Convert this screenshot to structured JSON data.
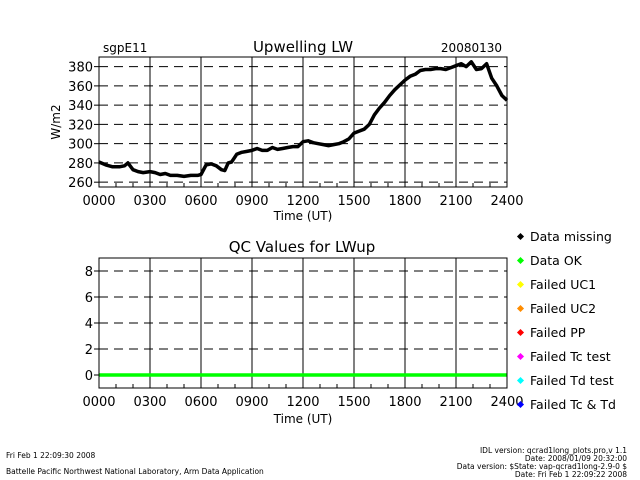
{
  "header": {
    "site": "sgpE11",
    "date": "20080130"
  },
  "footer": {
    "left_line1": "Fri Feb  1 22:09:30 2008",
    "left_line2": "Battelle Pacific Northwest National Laboratory, Arm Data Application",
    "right_line1": "IDL version: qcrad1long_plots.pro,v 1.1",
    "right_line2": "Date: 2008/01/09 20:32:00",
    "right_line3": "Data version: $State: vap-qcrad1long-2.9-0 $",
    "right_line4": "Date: Fri Feb  1 22:09:22 2008"
  },
  "legend": {
    "items": [
      {
        "label": "Data missing",
        "color": "#000000"
      },
      {
        "label": "Data OK",
        "color": "#00ff00"
      },
      {
        "label": "Failed UC1",
        "color": "#ffff00"
      },
      {
        "label": "Failed UC2",
        "color": "#ff8c00"
      },
      {
        "label": "Failed PP",
        "color": "#ff0000"
      },
      {
        "label": "Failed Tc test",
        "color": "#ff00ff"
      },
      {
        "label": "Failed Td test",
        "color": "#00ffff"
      },
      {
        "label": "Failed Tc & Td",
        "color": "#0000ff"
      }
    ]
  },
  "chart_data": [
    {
      "type": "line",
      "title": "Upwelling LW",
      "xlabel": "Time (UT)",
      "ylabel": "W/m2",
      "xlim": [
        0,
        24
      ],
      "ylim": [
        255,
        390
      ],
      "x_ticks": [
        0,
        3,
        6,
        9,
        12,
        15,
        18,
        21,
        24
      ],
      "x_tick_labels": [
        "0000",
        "0300",
        "0600",
        "0900",
        "1200",
        "1500",
        "1800",
        "2100",
        "2400"
      ],
      "y_ticks": [
        260,
        280,
        300,
        320,
        340,
        360,
        380
      ],
      "y_tick_labels": [
        "260",
        "280",
        "300",
        "320",
        "340",
        "360",
        "380"
      ],
      "grid": true,
      "line_color": "#000000",
      "series": [
        {
          "x": [
            0.0,
            0.4,
            0.8,
            1.2,
            1.5,
            1.7,
            2.0,
            2.3,
            2.6,
            3.0,
            3.3,
            3.6,
            3.9,
            4.2,
            4.6,
            5.0,
            5.4,
            5.8,
            6.0,
            6.3,
            6.6,
            6.9,
            7.2,
            7.4,
            7.6,
            7.8,
            8.1,
            8.4,
            8.7,
            9.0,
            9.3,
            9.6,
            9.9,
            10.2,
            10.5,
            10.8,
            11.1,
            11.4,
            11.7,
            12.0,
            12.3,
            12.6,
            12.9,
            13.2,
            13.5,
            13.8,
            14.1,
            14.4,
            14.7,
            15.0,
            15.3,
            15.6,
            15.9,
            16.2,
            16.5,
            16.8,
            17.1,
            17.4,
            17.7,
            18.0,
            18.3,
            18.6,
            18.9,
            19.2,
            19.5,
            19.8,
            20.1,
            20.4,
            20.7,
            21.0,
            21.3,
            21.6,
            21.9,
            22.2,
            22.5,
            22.8,
            23.1,
            23.4,
            23.7,
            24.0
          ],
          "y": [
            281,
            278,
            276,
            276,
            277,
            280,
            273,
            271,
            270,
            271,
            270,
            268,
            269,
            267,
            267,
            266,
            267,
            267,
            268,
            278,
            279,
            277,
            273,
            272,
            280,
            281,
            289,
            291,
            292,
            293,
            295,
            293,
            293,
            296,
            294,
            295,
            296,
            297,
            297,
            302,
            303,
            301,
            300,
            299,
            298,
            299,
            300,
            302,
            305,
            311,
            313,
            315,
            320,
            330,
            337,
            343,
            350,
            356,
            361,
            366,
            370,
            372,
            376,
            377,
            377,
            378,
            378,
            377,
            379,
            381,
            383,
            380,
            385,
            377,
            378,
            383,
            368,
            360,
            350,
            345
          ]
        }
      ]
    },
    {
      "type": "line",
      "title": "QC Values for LWup",
      "xlabel": "Time (UT)",
      "ylabel": "",
      "xlim": [
        0,
        24
      ],
      "ylim": [
        -1,
        9
      ],
      "x_ticks": [
        0,
        3,
        6,
        9,
        12,
        15,
        18,
        21,
        24
      ],
      "x_tick_labels": [
        "0000",
        "0300",
        "0600",
        "0900",
        "1200",
        "1500",
        "1800",
        "2100",
        "2400"
      ],
      "y_ticks": [
        0,
        2,
        4,
        6,
        8
      ],
      "y_tick_labels": [
        "0",
        "2",
        "4",
        "6",
        "8"
      ],
      "grid": true,
      "line_color": "#00ff00",
      "series": [
        {
          "x": [
            0,
            24
          ],
          "y": [
            0,
            0
          ]
        }
      ]
    }
  ]
}
